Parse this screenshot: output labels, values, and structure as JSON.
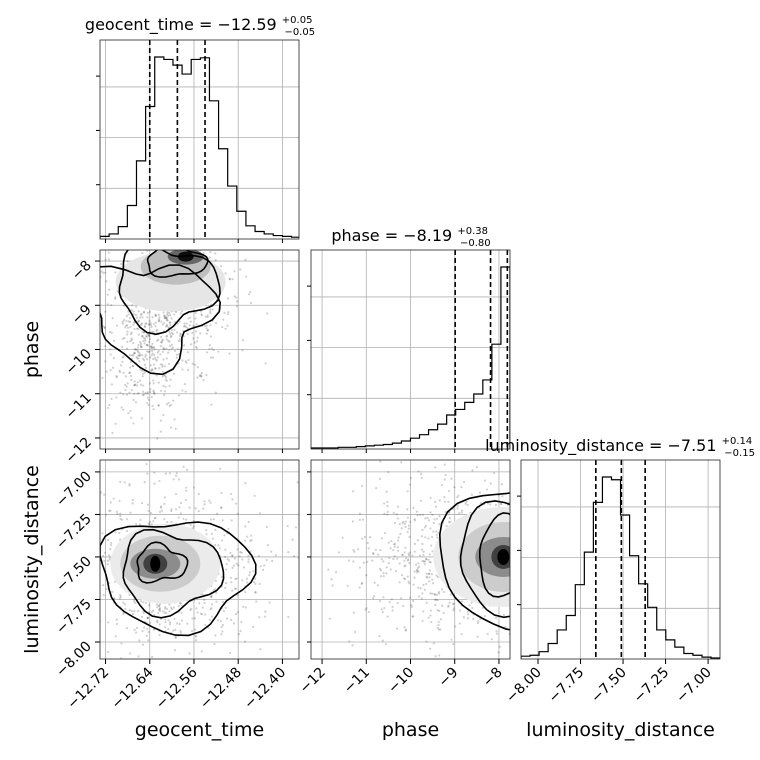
{
  "chart_data": {
    "type": "heatmap",
    "subtype": "corner-plot",
    "grid": true,
    "parameters": [
      {
        "name": "geocent_time",
        "label": "geocent_time",
        "range": [
          -12.73,
          -12.37
        ],
        "ticks": [
          "-12.72",
          "-12.64",
          "-12.56",
          "-12.48",
          "-12.40"
        ],
        "tick_values": [
          -12.72,
          -12.64,
          -12.56,
          -12.48,
          -12.4
        ],
        "title": {
          "main": "geocent_time = −12.59",
          "sup": "+0.05",
          "sub": "−0.05"
        },
        "median": -12.59,
        "quantiles": [
          -12.64,
          -12.59,
          -12.54
        ],
        "hist_edges_start": -12.73,
        "hist_bin_width": 0.0165,
        "hist_counts": [
          2,
          5,
          14,
          40,
          95,
          162,
          223,
          220,
          213,
          202,
          220,
          222,
          169,
          110,
          64,
          33,
          15,
          8,
          5,
          3,
          2,
          1
        ]
      },
      {
        "name": "phase",
        "label": "phase",
        "range": [
          -12.25,
          -7.75
        ],
        "ticks": [
          "-12",
          "-11",
          "-10",
          "-9",
          "-8"
        ],
        "tick_values": [
          -12,
          -11,
          -10,
          -9,
          -8
        ],
        "title": {
          "main": "phase = −8.19",
          "sup": "+0.38",
          "sub": "−0.80"
        },
        "median": -8.19,
        "quantiles": [
          -8.99,
          -8.19,
          -7.81
        ],
        "hist_edges_start": -12.25,
        "hist_bin_width": 0.2045,
        "hist_counts": [
          0,
          0,
          0,
          1,
          1,
          2,
          3,
          4,
          5,
          7,
          10,
          14,
          19,
          26,
          34,
          47,
          55,
          65,
          77,
          97,
          148,
          258
        ]
      },
      {
        "name": "luminosity_distance",
        "label": "luminosity_distance",
        "range": [
          -8.1,
          -6.93
        ],
        "ticks": [
          "-8.00",
          "-7.75",
          "-7.50",
          "-7.25",
          "-7.00"
        ],
        "tick_values": [
          -8.0,
          -7.75,
          -7.5,
          -7.25,
          -7.0
        ],
        "title": {
          "main": "luminosity_distance = −7.51",
          "sup": "+0.14",
          "sub": "−0.15"
        },
        "median": -7.51,
        "quantiles": [
          -7.66,
          -7.51,
          -7.37
        ],
        "hist_edges_start": -8.1,
        "hist_bin_width": 0.0532,
        "hist_counts": [
          2,
          3,
          7,
          16,
          31,
          47,
          81,
          117,
          172,
          200,
          197,
          158,
          113,
          82,
          56,
          31,
          20,
          12,
          5,
          3,
          1,
          0
        ]
      }
    ],
    "joint_modes": [
      {
        "x": "geocent_time",
        "y": "phase",
        "x_mode": -12.575,
        "y_mode": -7.9
      },
      {
        "x": "geocent_time",
        "y": "luminosity_distance",
        "x_mode": -12.63,
        "y_mode": -7.54
      },
      {
        "x": "phase",
        "y": "luminosity_distance",
        "x_mode": -7.9,
        "y_mode": -7.5
      }
    ]
  }
}
